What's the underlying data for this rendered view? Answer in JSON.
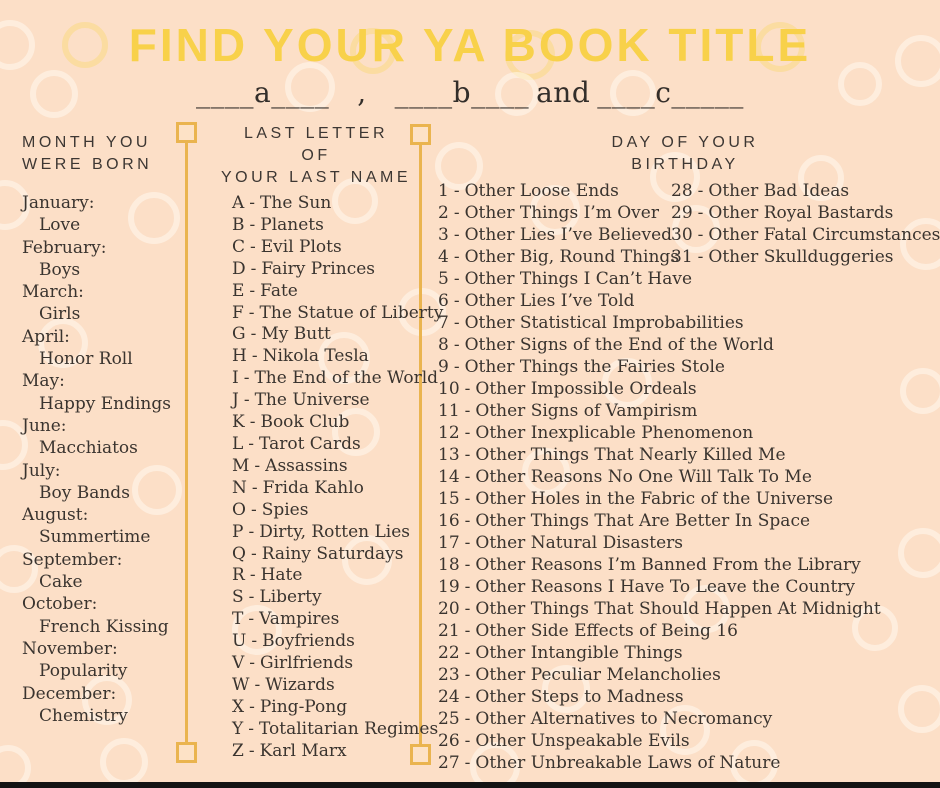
{
  "title": "FIND YOUR YA BOOK TITLE",
  "formula": {
    "blank_a": "____a____",
    "comma": ",",
    "blank_b": "____b____",
    "and_word": "and",
    "blank_c": "____c_____"
  },
  "columns": {
    "month": {
      "header_lines": [
        "MONTH YOU",
        "WERE BORN"
      ],
      "items": [
        {
          "label": "January:",
          "word": "Love"
        },
        {
          "label": "February:",
          "word": "Boys"
        },
        {
          "label": "March:",
          "word": "Girls"
        },
        {
          "label": "April:",
          "word": "Honor Roll"
        },
        {
          "label": "May:",
          "word": "Happy Endings"
        },
        {
          "label": "June:",
          "word": "Macchiatos"
        },
        {
          "label": "July:",
          "word": "Boy Bands"
        },
        {
          "label": "August:",
          "word": "Summertime"
        },
        {
          "label": "September:",
          "word": "Cake"
        },
        {
          "label": "October:",
          "word": "French Kissing"
        },
        {
          "label": "November:",
          "word": "Popularity"
        },
        {
          "label": "December:",
          "word": "Chemistry"
        }
      ]
    },
    "letter": {
      "header_lines": [
        "LAST LETTER",
        "OF",
        "YOUR LAST NAME"
      ],
      "separator": "-",
      "items": [
        {
          "key": "A",
          "text": "The Sun"
        },
        {
          "key": "B",
          "text": "Planets"
        },
        {
          "key": "C",
          "text": "Evil Plots"
        },
        {
          "key": "D",
          "text": "Fairy Princes"
        },
        {
          "key": "E",
          "text": "Fate"
        },
        {
          "key": "F",
          "text": "The Statue of Liberty"
        },
        {
          "key": "G",
          "text": "My Butt"
        },
        {
          "key": "H",
          "text": "Nikola Tesla"
        },
        {
          "key": "I",
          "text": "The End of the World"
        },
        {
          "key": "J",
          "text": "The Universe"
        },
        {
          "key": "K",
          "text": "Book Club"
        },
        {
          "key": "L",
          "text": "Tarot Cards"
        },
        {
          "key": "M",
          "text": "Assassins"
        },
        {
          "key": "N",
          "text": "Frida Kahlo"
        },
        {
          "key": "O",
          "text": "Spies"
        },
        {
          "key": "P",
          "text": "Dirty, Rotten Lies"
        },
        {
          "key": "Q",
          "text": "Rainy Saturdays"
        },
        {
          "key": "R",
          "text": "Hate"
        },
        {
          "key": "S",
          "text": "Liberty"
        },
        {
          "key": "T",
          "text": "Vampires"
        },
        {
          "key": "U",
          "text": "Boyfriends"
        },
        {
          "key": "V",
          "text": "Girlfriends"
        },
        {
          "key": "W",
          "text": "Wizards"
        },
        {
          "key": "X",
          "text": "Ping-Pong"
        },
        {
          "key": "Y",
          "text": "Totalitarian Regimes"
        },
        {
          "key": "Z",
          "text": "Karl Marx"
        }
      ]
    },
    "day": {
      "header_lines": [
        "DAY OF YOUR",
        "BIRTHDAY"
      ],
      "separator": "-",
      "items": [
        {
          "key": "1",
          "text": "Other Loose Ends"
        },
        {
          "key": "2",
          "text": "Other Things I’m Over"
        },
        {
          "key": "3",
          "text": "Other Lies I’ve Believed"
        },
        {
          "key": "4",
          "text": "Other Big, Round Things"
        },
        {
          "key": "5",
          "text": "Other Things I Can’t Have"
        },
        {
          "key": "6",
          "text": "Other Lies I’ve Told"
        },
        {
          "key": "7",
          "text": "Other Statistical Improbabilities"
        },
        {
          "key": "8",
          "text": "Other Signs of the End of the World"
        },
        {
          "key": "9",
          "text": "Other Things the Fairies Stole"
        },
        {
          "key": "10",
          "text": "Other Impossible Ordeals"
        },
        {
          "key": "11",
          "text": "Other Signs of Vampirism"
        },
        {
          "key": "12",
          "text": "Other Inexplicable Phenomenon"
        },
        {
          "key": "13",
          "text": "Other Things That Nearly Killed Me"
        },
        {
          "key": "14",
          "text": "Other Reasons No One Will Talk To Me"
        },
        {
          "key": "15",
          "text": "Other Holes in the Fabric of the Universe"
        },
        {
          "key": "16",
          "text": "Other Things That Are Better In Space"
        },
        {
          "key": "17",
          "text": "Other Natural Disasters"
        },
        {
          "key": "18",
          "text": "Other Reasons I’m Banned From the Library"
        },
        {
          "key": "19",
          "text": "Other Reasons I Have To Leave the Country"
        },
        {
          "key": "20",
          "text": "Other Things That Should Happen At Midnight"
        },
        {
          "key": "21",
          "text": "Other Side Effects of Being 16"
        },
        {
          "key": "22",
          "text": "Other Intangible Things"
        },
        {
          "key": "23",
          "text": "Other Peculiar Melancholies"
        },
        {
          "key": "24",
          "text": "Other Steps to Madness"
        },
        {
          "key": "25",
          "text": "Other Alternatives to Necromancy"
        },
        {
          "key": "26",
          "text": "Other Unspeakable Evils"
        },
        {
          "key": "27",
          "text": "Other Unbreakable Laws of Nature"
        }
      ],
      "items_right": [
        {
          "key": "28",
          "text": "Other Bad Ideas"
        },
        {
          "key": "29",
          "text": "Other Royal Bastards"
        },
        {
          "key": "30",
          "text": "Other Fatal Circumstances"
        },
        {
          "key": "31",
          "text": "Other Skullduggeries"
        }
      ]
    }
  },
  "colors": {
    "background": "#fcdfc7",
    "title_yellow": "#f8d14a",
    "text_dark": "#3a342f",
    "divider_orange": "#eab44f",
    "footer_black": "#131313"
  }
}
